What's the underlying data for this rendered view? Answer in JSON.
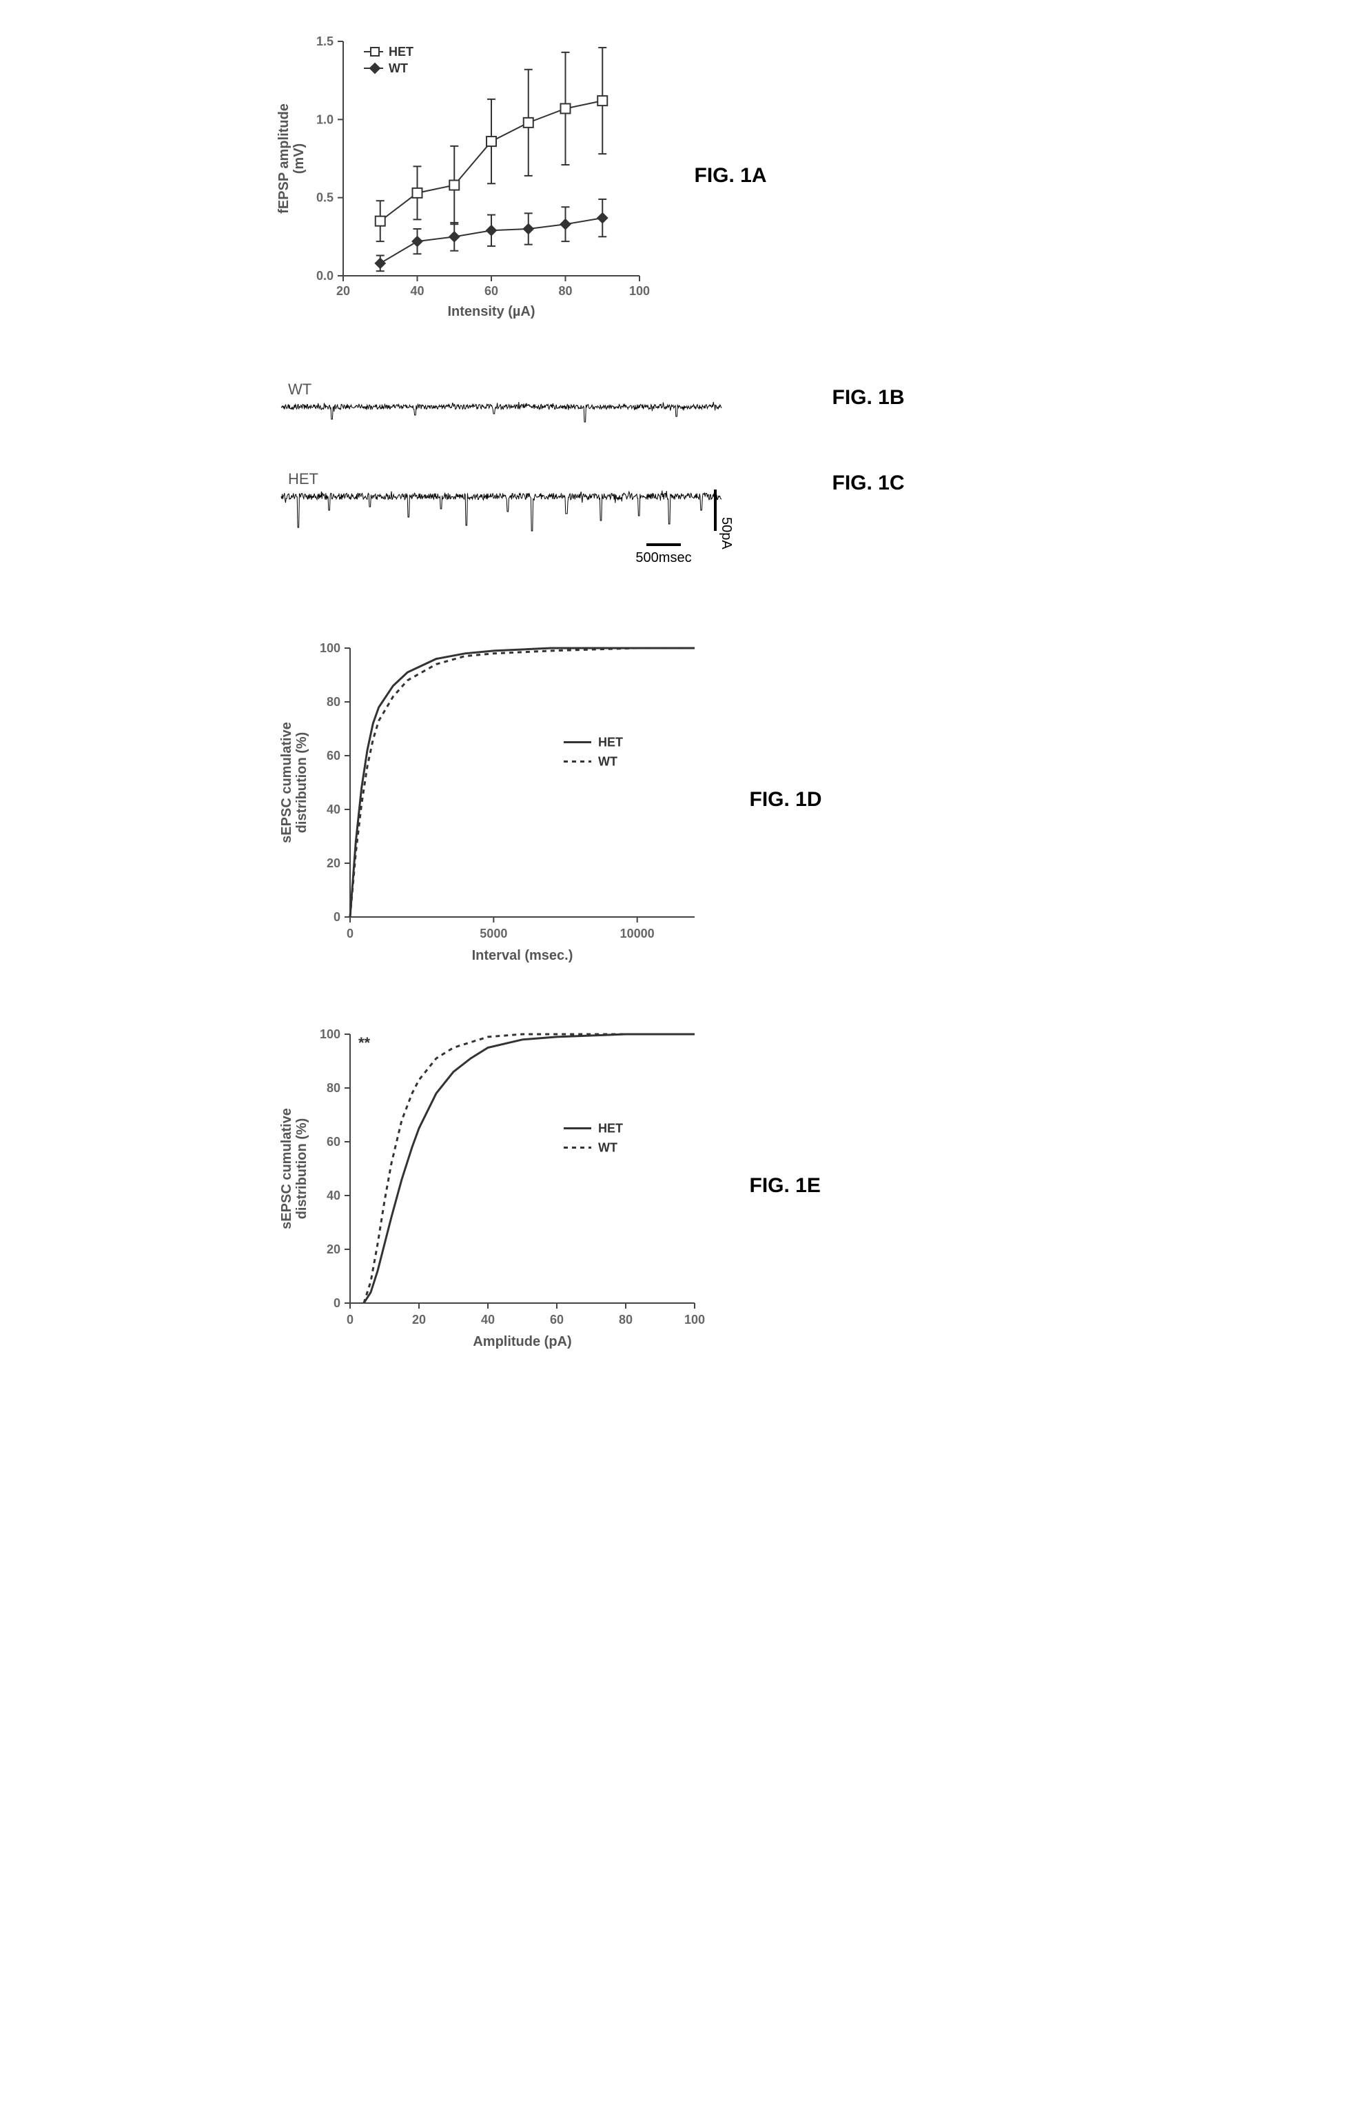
{
  "labels": {
    "fig1a": "FIG. 1A",
    "fig1b": "FIG. 1B",
    "fig1c": "FIG. 1C",
    "fig1d": "FIG. 1D",
    "fig1e": "FIG. 1E"
  },
  "colors": {
    "axis": "#444444",
    "tick_text": "#666666",
    "series": "#333333",
    "background": "#ffffff",
    "trace": "#000000"
  },
  "panelA": {
    "type": "line_errorbar",
    "xlabel": "Intensity (µA)",
    "ylabel": "fEPSP amplitude\n(mV)",
    "xlim": [
      20,
      100
    ],
    "ylim": [
      0.0,
      1.5
    ],
    "xticks": [
      20,
      40,
      60,
      80,
      100
    ],
    "yticks": [
      0.0,
      0.5,
      1.0,
      1.5
    ],
    "legend": [
      {
        "label": "HET",
        "marker": "open-square"
      },
      {
        "label": "WT",
        "marker": "solid-diamond"
      }
    ],
    "series": {
      "HET": {
        "marker": "open-square",
        "x": [
          30,
          40,
          50,
          60,
          70,
          80,
          90
        ],
        "y": [
          0.35,
          0.53,
          0.58,
          0.86,
          0.98,
          1.07,
          1.12
        ],
        "err": [
          0.13,
          0.17,
          0.25,
          0.27,
          0.34,
          0.36,
          0.34
        ]
      },
      "WT": {
        "marker": "solid-diamond",
        "x": [
          30,
          40,
          50,
          60,
          70,
          80,
          90
        ],
        "y": [
          0.08,
          0.22,
          0.25,
          0.29,
          0.3,
          0.33,
          0.37
        ],
        "err": [
          0.05,
          0.08,
          0.09,
          0.1,
          0.1,
          0.11,
          0.12
        ]
      }
    },
    "marker_size": 7,
    "font_title": 20,
    "font_tick": 18
  },
  "panelB": {
    "type": "trace",
    "label": "WT",
    "baseline_pA": 0,
    "noise_amp_pA": 6,
    "events_pA": [
      -18,
      -12,
      -10,
      -22,
      -14
    ],
    "duration_ms": 10000
  },
  "panelC": {
    "type": "trace",
    "label": "HET",
    "baseline_pA": 0,
    "noise_amp_pA": 8,
    "events_pA": [
      -45,
      -20,
      -15,
      -30,
      -18,
      -42,
      -22,
      -50,
      -25,
      -35,
      -28,
      -40,
      -20
    ],
    "duration_ms": 10000,
    "scalebar": {
      "y_pA": 50,
      "y_label": "50pA",
      "x_ms": 500,
      "x_label": "500msec"
    }
  },
  "panelD": {
    "type": "cdf",
    "xlabel": "Interval (msec.)",
    "ylabel": "sEPSC cumulative\ndistribution (%)",
    "xlim": [
      0,
      12000
    ],
    "ylim": [
      0,
      100
    ],
    "xticks": [
      0,
      5000,
      10000
    ],
    "yticks": [
      0,
      20,
      40,
      60,
      80,
      100
    ],
    "legend": [
      {
        "label": "HET",
        "style": "solid"
      },
      {
        "label": "WT",
        "style": "dashed"
      }
    ],
    "series": {
      "HET": {
        "style": "solid",
        "x": [
          0,
          200,
          400,
          600,
          800,
          1000,
          1500,
          2000,
          3000,
          4000,
          5000,
          7000,
          10000,
          12000
        ],
        "y": [
          0,
          28,
          48,
          62,
          72,
          78,
          86,
          91,
          96,
          98,
          99,
          100,
          100,
          100
        ]
      },
      "WT": {
        "style": "dashed",
        "x": [
          0,
          200,
          400,
          600,
          800,
          1000,
          1500,
          2000,
          3000,
          4000,
          5000,
          7000,
          10000,
          12000
        ],
        "y": [
          0,
          24,
          42,
          56,
          66,
          73,
          82,
          88,
          94,
          97,
          98,
          99,
          100,
          100
        ]
      }
    }
  },
  "panelE": {
    "type": "cdf",
    "significance": "**",
    "xlabel": "Amplitude (pA)",
    "ylabel": "sEPSC cumulative\ndistribution (%)",
    "xlim": [
      0,
      100
    ],
    "ylim": [
      0,
      100
    ],
    "xticks": [
      0,
      20,
      40,
      60,
      80,
      100
    ],
    "yticks": [
      0,
      20,
      40,
      60,
      80,
      100
    ],
    "legend": [
      {
        "label": "HET",
        "style": "solid"
      },
      {
        "label": "WT",
        "style": "dashed"
      }
    ],
    "series": {
      "HET": {
        "style": "solid",
        "x": [
          4,
          6,
          8,
          10,
          12,
          15,
          18,
          20,
          25,
          30,
          35,
          40,
          50,
          60,
          80,
          100
        ],
        "y": [
          0,
          4,
          12,
          22,
          32,
          46,
          58,
          65,
          78,
          86,
          91,
          95,
          98,
          99,
          100,
          100
        ]
      },
      "WT": {
        "style": "dashed",
        "x": [
          4,
          6,
          8,
          10,
          12,
          15,
          18,
          20,
          25,
          30,
          35,
          40,
          50,
          60,
          80,
          100
        ],
        "y": [
          0,
          8,
          22,
          38,
          52,
          68,
          78,
          83,
          91,
          95,
          97,
          99,
          100,
          100,
          100,
          100
        ]
      }
    }
  }
}
